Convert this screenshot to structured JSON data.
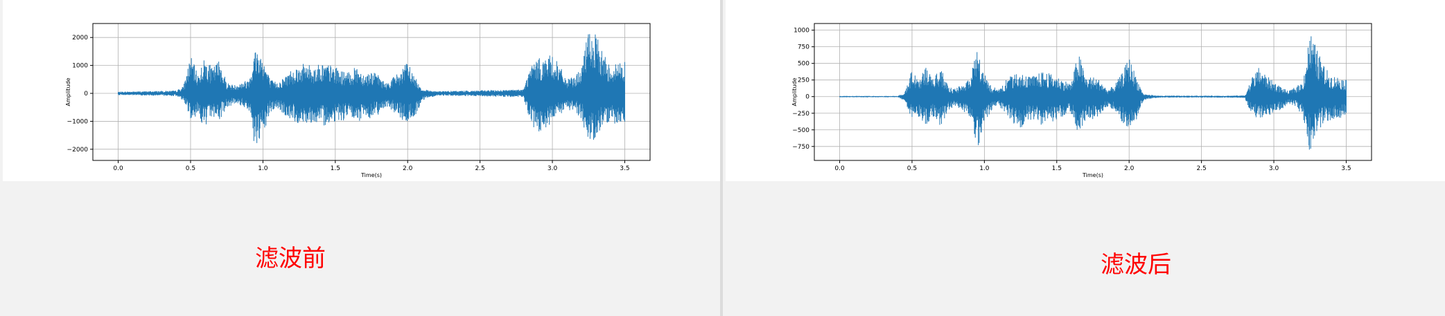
{
  "chart_data": [
    {
      "type": "line",
      "title": "",
      "xlabel": "Time(s)",
      "ylabel": "Amplitude",
      "xlim": [
        -0.175,
        3.675
      ],
      "ylim": [
        -2400,
        2500
      ],
      "xticks": [
        0.0,
        0.5,
        1.0,
        1.5,
        2.0,
        2.5,
        3.0,
        3.5
      ],
      "xtick_labels": [
        "0.0",
        "0.5",
        "1.0",
        "1.5",
        "2.0",
        "2.5",
        "3.0",
        "3.5"
      ],
      "yticks": [
        -2000,
        -1000,
        0,
        1000,
        2000
      ],
      "ytick_labels": [
        "−2000",
        "−1000",
        "0",
        "1000",
        "2000"
      ],
      "grid": true,
      "color": "#1f77b4",
      "series": [
        {
          "x": [
            0.0,
            0.1,
            0.2,
            0.3,
            0.4,
            0.45,
            0.5,
            0.55,
            0.6,
            0.65,
            0.7,
            0.75,
            0.8,
            0.85,
            0.9,
            0.95,
            1.0,
            1.05,
            1.1,
            1.15,
            1.2,
            1.25,
            1.3,
            1.35,
            1.4,
            1.45,
            1.5,
            1.55,
            1.6,
            1.65,
            1.7,
            1.75,
            1.8,
            1.85,
            1.9,
            1.95,
            2.0,
            2.05,
            2.1,
            2.2,
            2.3,
            2.4,
            2.5,
            2.6,
            2.7,
            2.8,
            2.85,
            2.9,
            2.95,
            3.0,
            3.05,
            3.1,
            3.15,
            3.2,
            3.25,
            3.3,
            3.35,
            3.4,
            3.45,
            3.5
          ],
          "upper": [
            60,
            70,
            80,
            90,
            100,
            250,
            1350,
            700,
            1300,
            900,
            1250,
            400,
            300,
            400,
            500,
            1700,
            1350,
            500,
            400,
            600,
            900,
            1000,
            1100,
            950,
            1100,
            1050,
            950,
            800,
            750,
            1000,
            700,
            800,
            650,
            350,
            600,
            800,
            1150,
            600,
            150,
            80,
            90,
            100,
            110,
            120,
            130,
            150,
            1000,
            1250,
            1300,
            1400,
            1000,
            500,
            600,
            900,
            2300,
            2100,
            1500,
            1000,
            1100,
            1200
          ],
          "lower": [
            -60,
            -70,
            -80,
            -90,
            -100,
            -250,
            -900,
            -800,
            -1300,
            -800,
            -1000,
            -500,
            -400,
            -450,
            -600,
            -2150,
            -1600,
            -700,
            -550,
            -800,
            -1000,
            -1100,
            -1050,
            -1050,
            -1200,
            -1100,
            -1000,
            -1000,
            -850,
            -1100,
            -850,
            -900,
            -750,
            -450,
            -650,
            -950,
            -1050,
            -900,
            -250,
            -80,
            -90,
            -100,
            -110,
            -120,
            -130,
            -150,
            -1100,
            -1500,
            -1400,
            -1050,
            -800,
            -600,
            -650,
            -900,
            -1800,
            -1600,
            -1100,
            -1100,
            -1150,
            -1200
          ]
        }
      ]
    },
    {
      "type": "line",
      "title": "",
      "xlabel": "Time(s)",
      "ylabel": "Amplitude",
      "xlim": [
        -0.175,
        3.675
      ],
      "ylim": [
        -960,
        1100
      ],
      "xticks": [
        0.0,
        0.5,
        1.0,
        1.5,
        2.0,
        2.5,
        3.0,
        3.5
      ],
      "xtick_labels": [
        "0.0",
        "0.5",
        "1.0",
        "1.5",
        "2.0",
        "2.5",
        "3.0",
        "3.5"
      ],
      "yticks": [
        -750,
        -500,
        -250,
        0,
        250,
        500,
        750,
        1000
      ],
      "ytick_labels": [
        "−750",
        "−500",
        "−250",
        "0",
        "250",
        "500",
        "750",
        "1000"
      ],
      "grid": true,
      "color": "#1f77b4",
      "series": [
        {
          "x": [
            0.0,
            0.1,
            0.2,
            0.3,
            0.4,
            0.45,
            0.5,
            0.55,
            0.6,
            0.65,
            0.7,
            0.75,
            0.8,
            0.85,
            0.9,
            0.95,
            1.0,
            1.05,
            1.1,
            1.15,
            1.2,
            1.25,
            1.3,
            1.35,
            1.4,
            1.45,
            1.5,
            1.55,
            1.6,
            1.65,
            1.7,
            1.75,
            1.8,
            1.85,
            1.9,
            1.95,
            2.0,
            2.05,
            2.1,
            2.2,
            2.3,
            2.4,
            2.5,
            2.6,
            2.7,
            2.8,
            2.85,
            2.9,
            2.95,
            3.0,
            3.05,
            3.1,
            3.15,
            3.2,
            3.25,
            3.3,
            3.35,
            3.4,
            3.45,
            3.5
          ],
          "upper": [
            10,
            10,
            10,
            10,
            10,
            60,
            420,
            250,
            480,
            280,
            450,
            150,
            120,
            200,
            300,
            680,
            350,
            150,
            120,
            250,
            350,
            380,
            300,
            320,
            380,
            350,
            300,
            250,
            200,
            680,
            300,
            300,
            250,
            100,
            180,
            350,
            600,
            300,
            40,
            15,
            15,
            15,
            15,
            15,
            15,
            20,
            300,
            450,
            320,
            220,
            150,
            80,
            150,
            220,
            1000,
            700,
            450,
            320,
            300,
            250
          ],
          "lower": [
            -10,
            -10,
            -10,
            -10,
            -10,
            -60,
            -350,
            -300,
            -450,
            -300,
            -450,
            -200,
            -150,
            -200,
            -350,
            -800,
            -450,
            -200,
            -150,
            -250,
            -450,
            -480,
            -350,
            -350,
            -450,
            -400,
            -350,
            -300,
            -250,
            -600,
            -350,
            -350,
            -300,
            -150,
            -200,
            -400,
            -550,
            -350,
            -50,
            -15,
            -15,
            -15,
            -15,
            -15,
            -15,
            -20,
            -300,
            -320,
            -300,
            -250,
            -200,
            -100,
            -150,
            -300,
            -850,
            -550,
            -400,
            -350,
            -350,
            -300
          ]
        }
      ]
    }
  ],
  "captions": {
    "before": "滤波前",
    "after": "滤波后"
  }
}
